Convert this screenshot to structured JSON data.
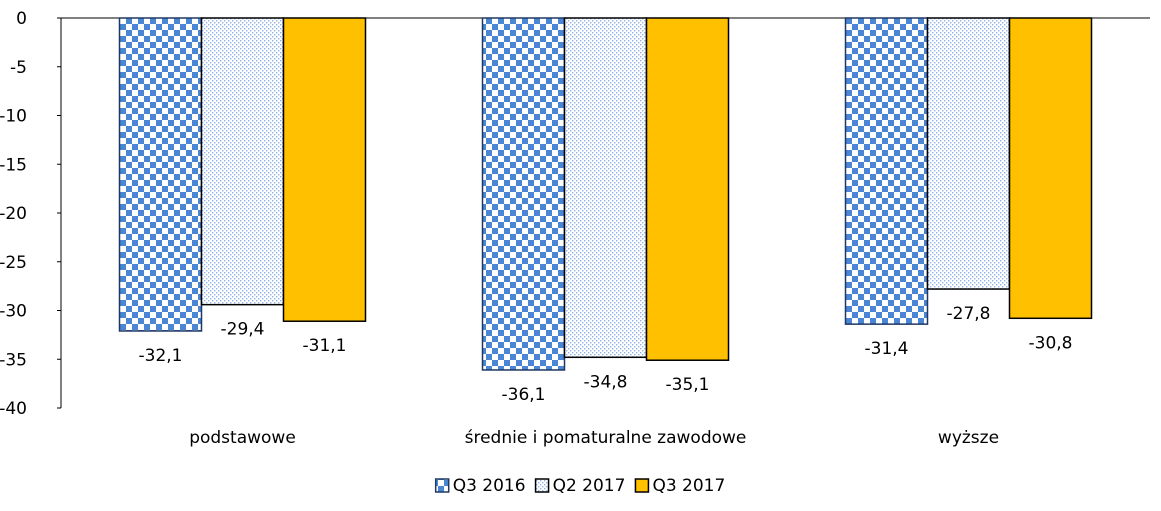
{
  "chart_data": {
    "type": "bar",
    "title": "",
    "xlabel": "",
    "ylabel": "",
    "categories": [
      "podstawowe",
      "średnie i pomaturalne zawodowe",
      "wyższe"
    ],
    "series": [
      {
        "name": "Q3 2016",
        "values": [
          -32.1,
          -36.1,
          -31.4
        ],
        "labels": [
          "-32,1",
          "-36,1",
          "-31,4"
        ],
        "pattern": "checker",
        "color": "#4a86d4",
        "border": "#1f3864"
      },
      {
        "name": "Q2 2017",
        "values": [
          -29.4,
          -34.8,
          -27.8
        ],
        "labels": [
          "-29,4",
          "-34,8",
          "-27,8"
        ],
        "pattern": "dots",
        "color": "#8fb4e3",
        "border": "#000000"
      },
      {
        "name": "Q3 2017",
        "values": [
          -31.1,
          -35.1,
          -30.8
        ],
        "labels": [
          "-31,1",
          "-35,1",
          "-30,8"
        ],
        "pattern": "solid",
        "color": "#ffc000",
        "border": "#000000"
      }
    ],
    "ylim": [
      -40,
      0
    ],
    "yticks": [
      0,
      -5,
      -10,
      -15,
      -20,
      -25,
      -30,
      -35,
      -40
    ],
    "ytick_labels": [
      "0",
      "-5",
      "-10",
      "-15",
      "-20",
      "-25",
      "-30",
      "-35",
      "-40"
    ],
    "grid": false,
    "legend_position": "bottom"
  }
}
